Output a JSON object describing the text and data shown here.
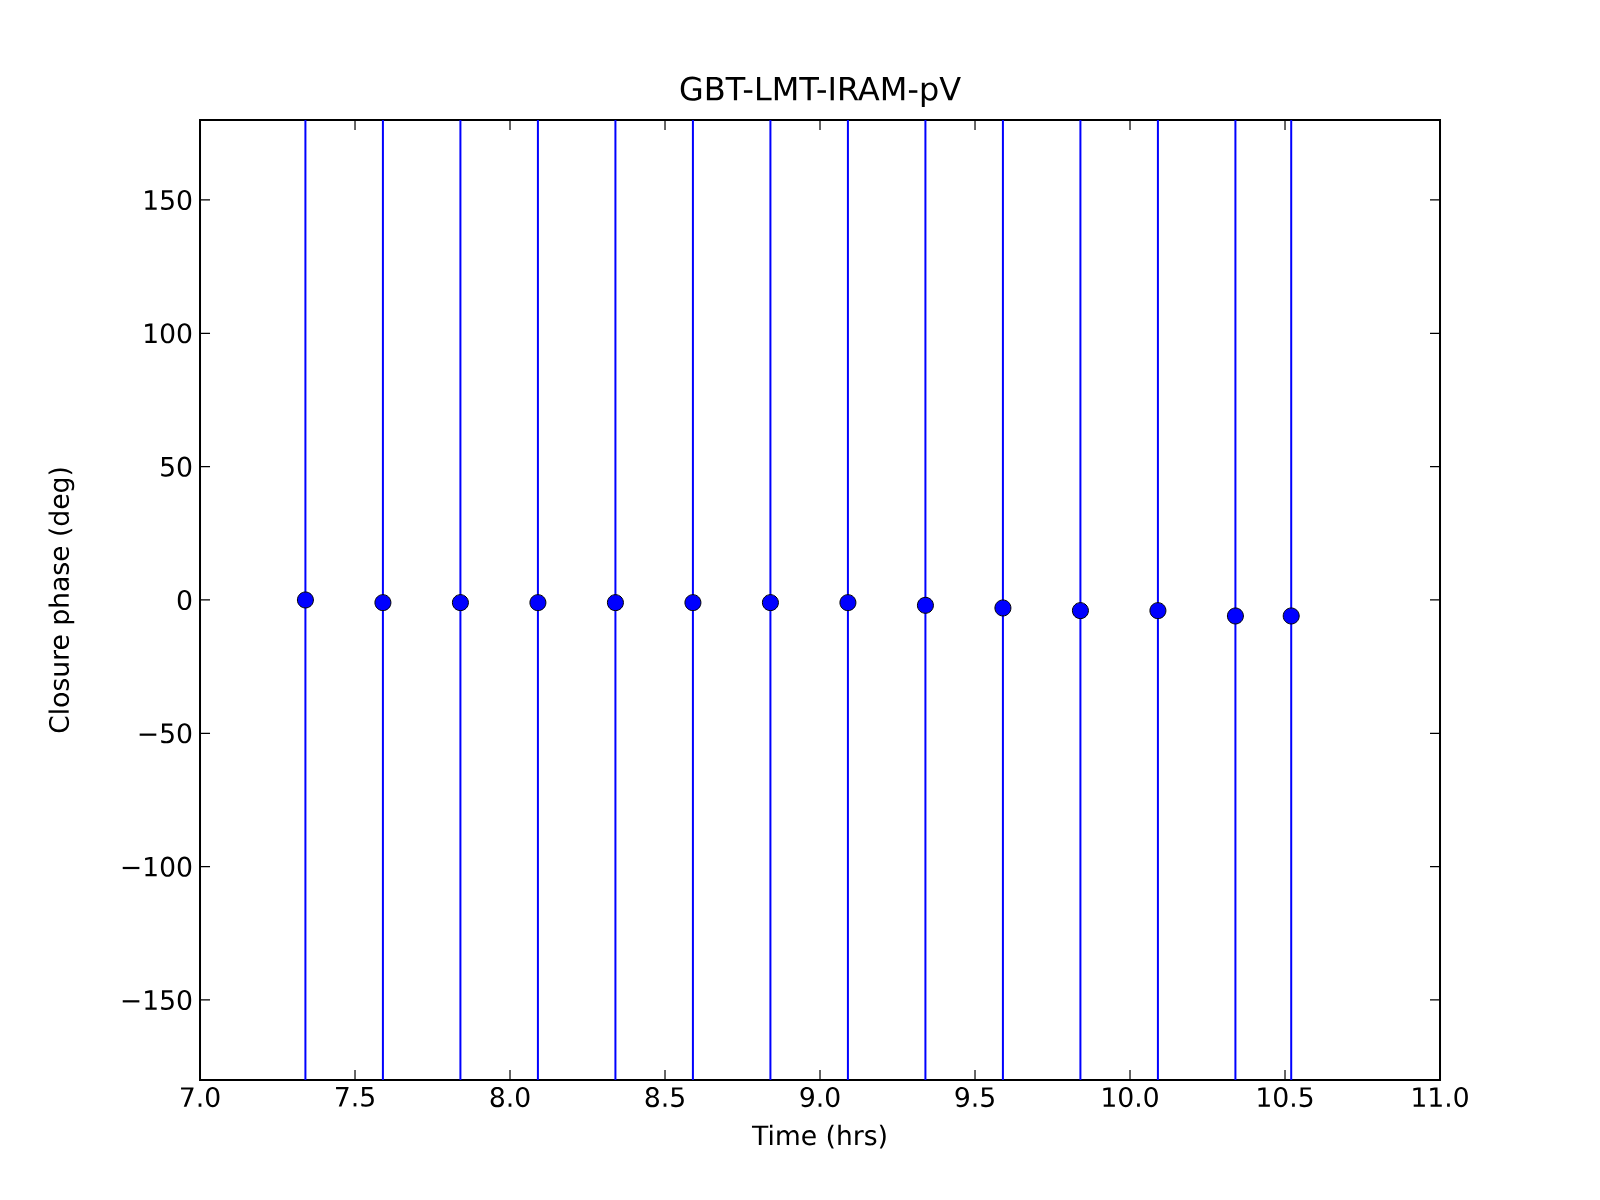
{
  "chart_data": {
    "type": "scatter",
    "title": "GBT-LMT-IRAM-pV",
    "xlabel": "Time (hrs)",
    "ylabel": "Closure phase (deg)",
    "x": [
      7.34,
      7.59,
      7.84,
      8.09,
      8.34,
      8.59,
      8.84,
      9.09,
      9.34,
      9.59,
      9.84,
      10.09,
      10.34,
      10.52
    ],
    "values": [
      0,
      -1,
      -1,
      -1,
      -1,
      -1,
      -1,
      -1,
      -2,
      -3,
      -4,
      -4,
      -6,
      -6
    ],
    "errors": [
      [
        -180,
        180
      ],
      [
        -180,
        180
      ],
      [
        -180,
        180
      ],
      [
        -180,
        180
      ],
      [
        -180,
        180
      ],
      [
        -180,
        180
      ],
      [
        -180,
        180
      ],
      [
        -180,
        180
      ],
      [
        -180,
        180
      ],
      [
        -180,
        180
      ],
      [
        -180,
        180
      ],
      [
        -180,
        180
      ],
      [
        -180,
        180
      ],
      [
        -180,
        180
      ]
    ],
    "color": "#0000ff",
    "marker": "circle",
    "xlim": [
      7,
      11
    ],
    "ylim": [
      -180,
      180
    ],
    "xticks": [
      {
        "value": 7,
        "label": "7.0"
      },
      {
        "value": 7.5,
        "label": "7.5"
      },
      {
        "value": 8,
        "label": "8.0"
      },
      {
        "value": 8.5,
        "label": "8.5"
      },
      {
        "value": 9,
        "label": "9.0"
      },
      {
        "value": 9.5,
        "label": "9.5"
      },
      {
        "value": 10,
        "label": "10.0"
      },
      {
        "value": 10.5,
        "label": "10.5"
      },
      {
        "value": 11,
        "label": "11.0"
      }
    ],
    "yticks": [
      {
        "value": -150,
        "label": "−150"
      },
      {
        "value": -100,
        "label": "−100"
      },
      {
        "value": -50,
        "label": "−50"
      },
      0,
      50,
      100,
      150
    ]
  }
}
